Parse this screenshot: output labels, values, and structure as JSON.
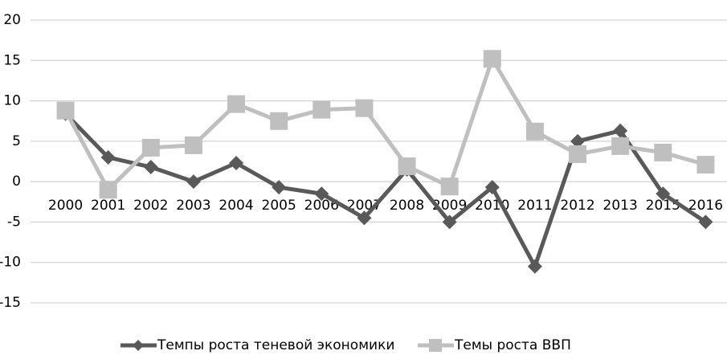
{
  "chart_data": {
    "type": "line",
    "categories": [
      "2000",
      "2001",
      "2002",
      "2003",
      "2004",
      "2005",
      "2006",
      "2007",
      "2008",
      "2009",
      "2010",
      "2011",
      "2012",
      "2013",
      "2015",
      "2016"
    ],
    "series": [
      {
        "name": "Темпы роста теневой экономики",
        "color": "#595959",
        "marker": "diamond",
        "values": [
          8.4,
          3,
          1.8,
          0,
          2.3,
          -0.7,
          -1.5,
          -4.5,
          1.5,
          -5,
          -0.7,
          -10.5,
          5,
          6.3,
          -1.5,
          -5
        ]
      },
      {
        "name": "Темы роста ВВП",
        "color": "#bfbfbf",
        "marker": "square",
        "values": [
          8.8,
          -1,
          4.2,
          4.5,
          9.6,
          7.5,
          8.9,
          9.1,
          1.9,
          -0.6,
          15.2,
          6.2,
          3.4,
          4.4,
          3.6,
          2.1
        ]
      }
    ],
    "ylim": [
      -15,
      20
    ],
    "yticks": [
      -15,
      -10,
      -5,
      0,
      5,
      10,
      15,
      20
    ],
    "grid": true,
    "legend": "bottom"
  }
}
